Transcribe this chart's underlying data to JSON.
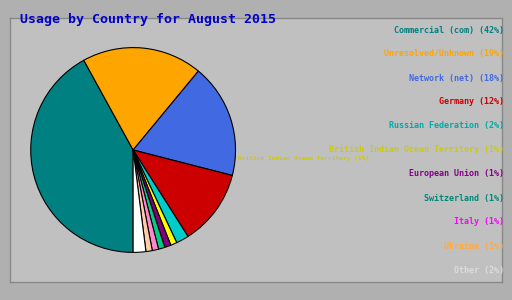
{
  "title": "Usage by Country for August 2015",
  "title_color": "#0000cc",
  "title_fontsize": 9.5,
  "background_color": "#b0b0b0",
  "inner_background": "#c0c0c0",
  "labels": [
    "Commercial (com)",
    "Unresolved/Unknown",
    "Network (net)",
    "Germany",
    "Russian Federation",
    "British Indian Ocean Territory",
    "European Union",
    "Switzerland",
    "Italy",
    "Ukraine",
    "Other"
  ],
  "percentages": [
    42,
    19,
    18,
    12,
    2,
    1,
    1,
    1,
    1,
    1,
    2
  ],
  "pie_colors": [
    "#008080",
    "#ffa500",
    "#4169e1",
    "#cc0000",
    "#00cccc",
    "#ffff00",
    "#800080",
    "#00cc88",
    "#ff88cc",
    "#ffccaa",
    "#ffffff"
  ],
  "legend_text_colors": [
    "#008080",
    "#ffa500",
    "#4169e1",
    "#cc0000",
    "#00aaaa",
    "#cccc00",
    "#880088",
    "#008877",
    "#ff00ff",
    "#ffaa44",
    "#dddddd"
  ]
}
